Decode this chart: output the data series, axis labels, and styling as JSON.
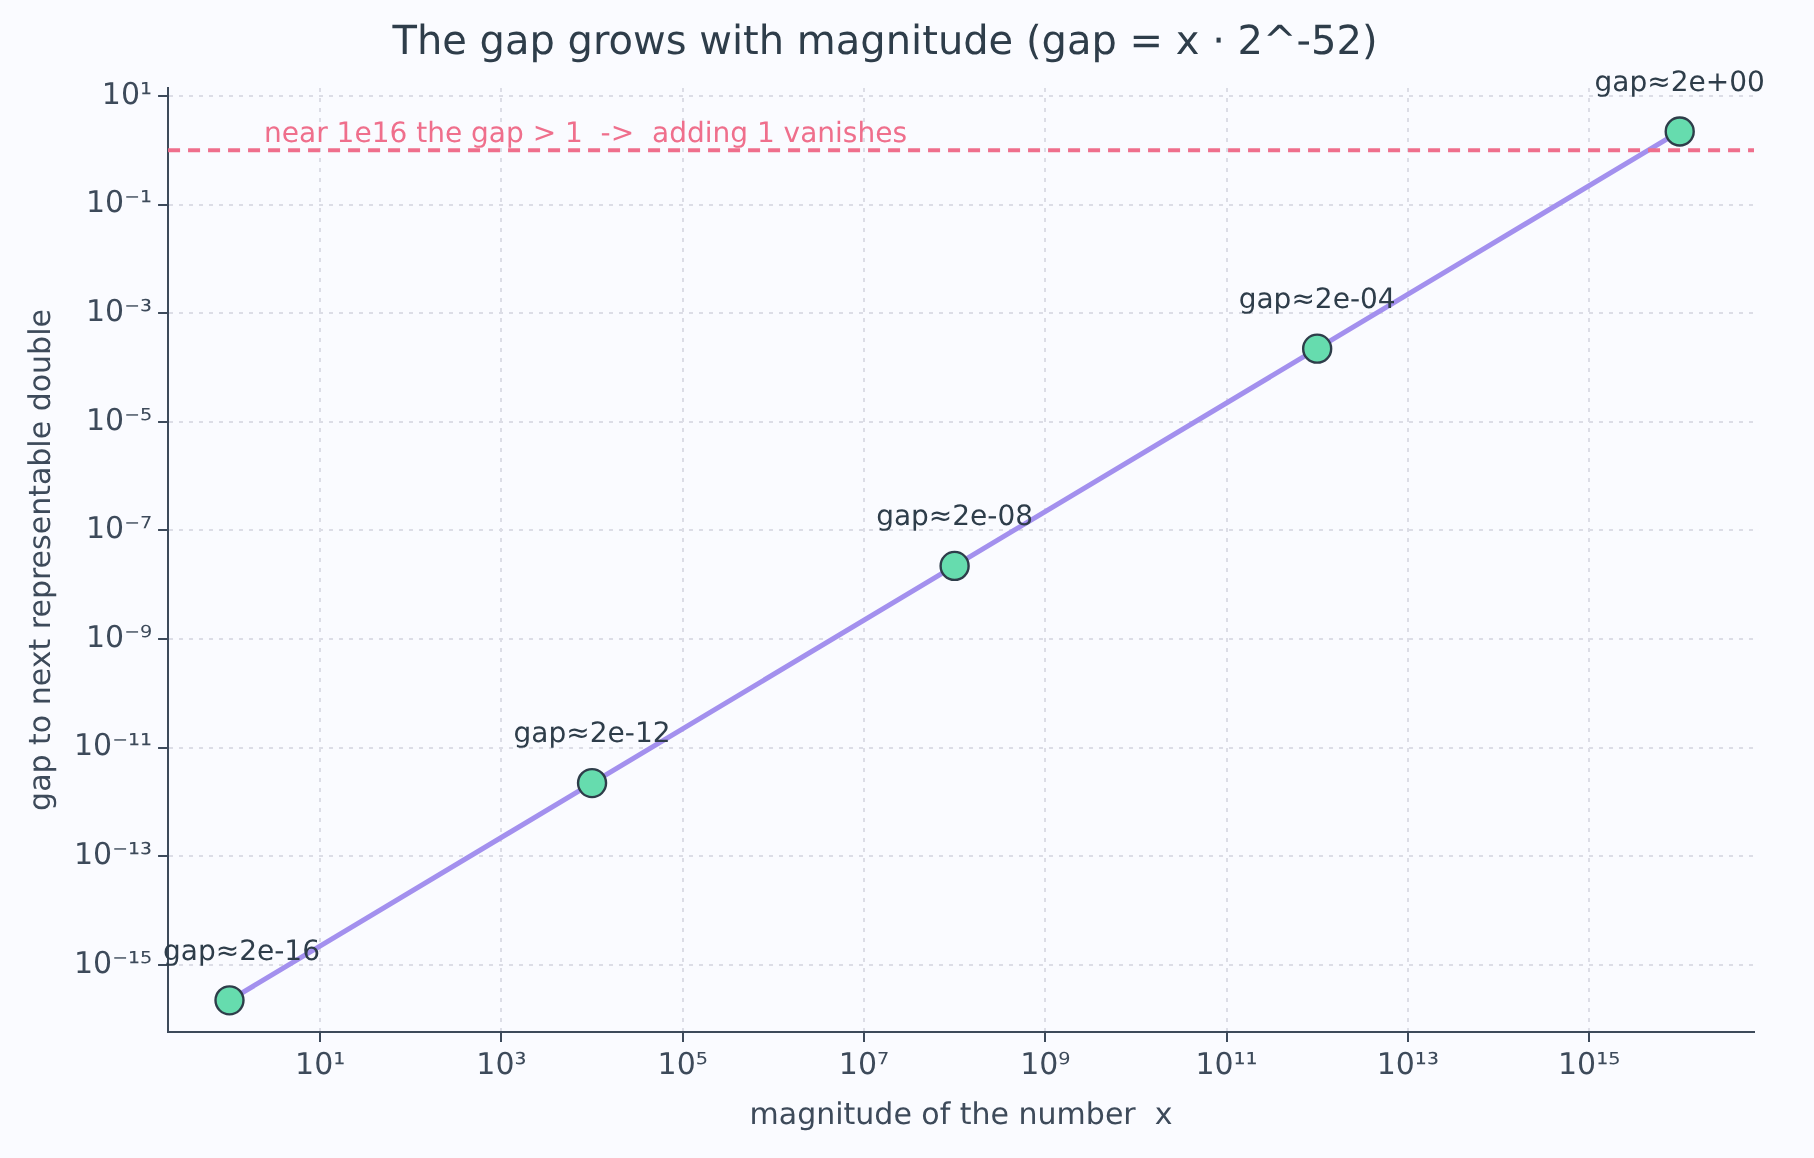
{
  "chart_data": {
    "type": "line",
    "title": "The gap grows with magnitude (gap = x · 2^-52)",
    "xlabel": "magnitude of the number  x",
    "ylabel": "gap to next representable double",
    "x": [
      1,
      10000,
      100000000,
      1000000000000,
      10000000000000000
    ],
    "series": [
      {
        "color": "#a390ee",
        "colors": [
          "#66dcae",
          "#66dcae",
          "#66dcae",
          "#66dcae",
          "#66dcae"
        ],
        "values": [
          2.22e-16,
          2.22e-12,
          2.22e-08,
          0.000222,
          2.22
        ],
        "value_labels": [
          "gap≈2e-16",
          "gap≈2e-12",
          "gap≈2e-08",
          "gap≈2e-04",
          "gap≈2e+00"
        ]
      }
    ],
    "log": "xy",
    "xlim": [
      0.21,
      6.6e+16
    ],
    "ylim": [
      5.8e-17,
      14
    ],
    "xticks": [
      {
        "value": 10,
        "label": "10¹"
      },
      {
        "value": 1000,
        "label": "10³"
      },
      {
        "value": 100000,
        "label": "10⁵"
      },
      {
        "value": 10000000,
        "label": "10⁷"
      },
      {
        "value": 1000000000,
        "label": "10⁹"
      },
      {
        "value": 100000000000,
        "label": "10¹¹"
      },
      {
        "value": 10000000000000,
        "label": "10¹³"
      },
      {
        "value": 1000000000000000,
        "label": "10¹⁵"
      }
    ],
    "yticks": [
      {
        "value": 10,
        "label": "10¹"
      },
      {
        "value": 0.1,
        "label": "10⁻¹"
      },
      {
        "value": 0.001,
        "label": "10⁻³"
      },
      {
        "value": 1e-05,
        "label": "10⁻⁵"
      },
      {
        "value": 1e-07,
        "label": "10⁻⁷"
      },
      {
        "value": 1e-09,
        "label": "10⁻⁹"
      },
      {
        "value": 1e-11,
        "label": "10⁻¹¹"
      },
      {
        "value": 1e-13,
        "label": "10⁻¹³"
      },
      {
        "value": 1e-15,
        "label": "10⁻¹⁵"
      }
    ],
    "ref_lines": [
      {
        "axis": "y",
        "value": 1,
        "label": "near 1e16 the gap > 1  ->  adding 1 vanishes",
        "color": "#ef6f8c",
        "line_style": "dashed"
      }
    ],
    "grid": true,
    "legend": false,
    "marker": "circle",
    "line_style": "solid"
  }
}
